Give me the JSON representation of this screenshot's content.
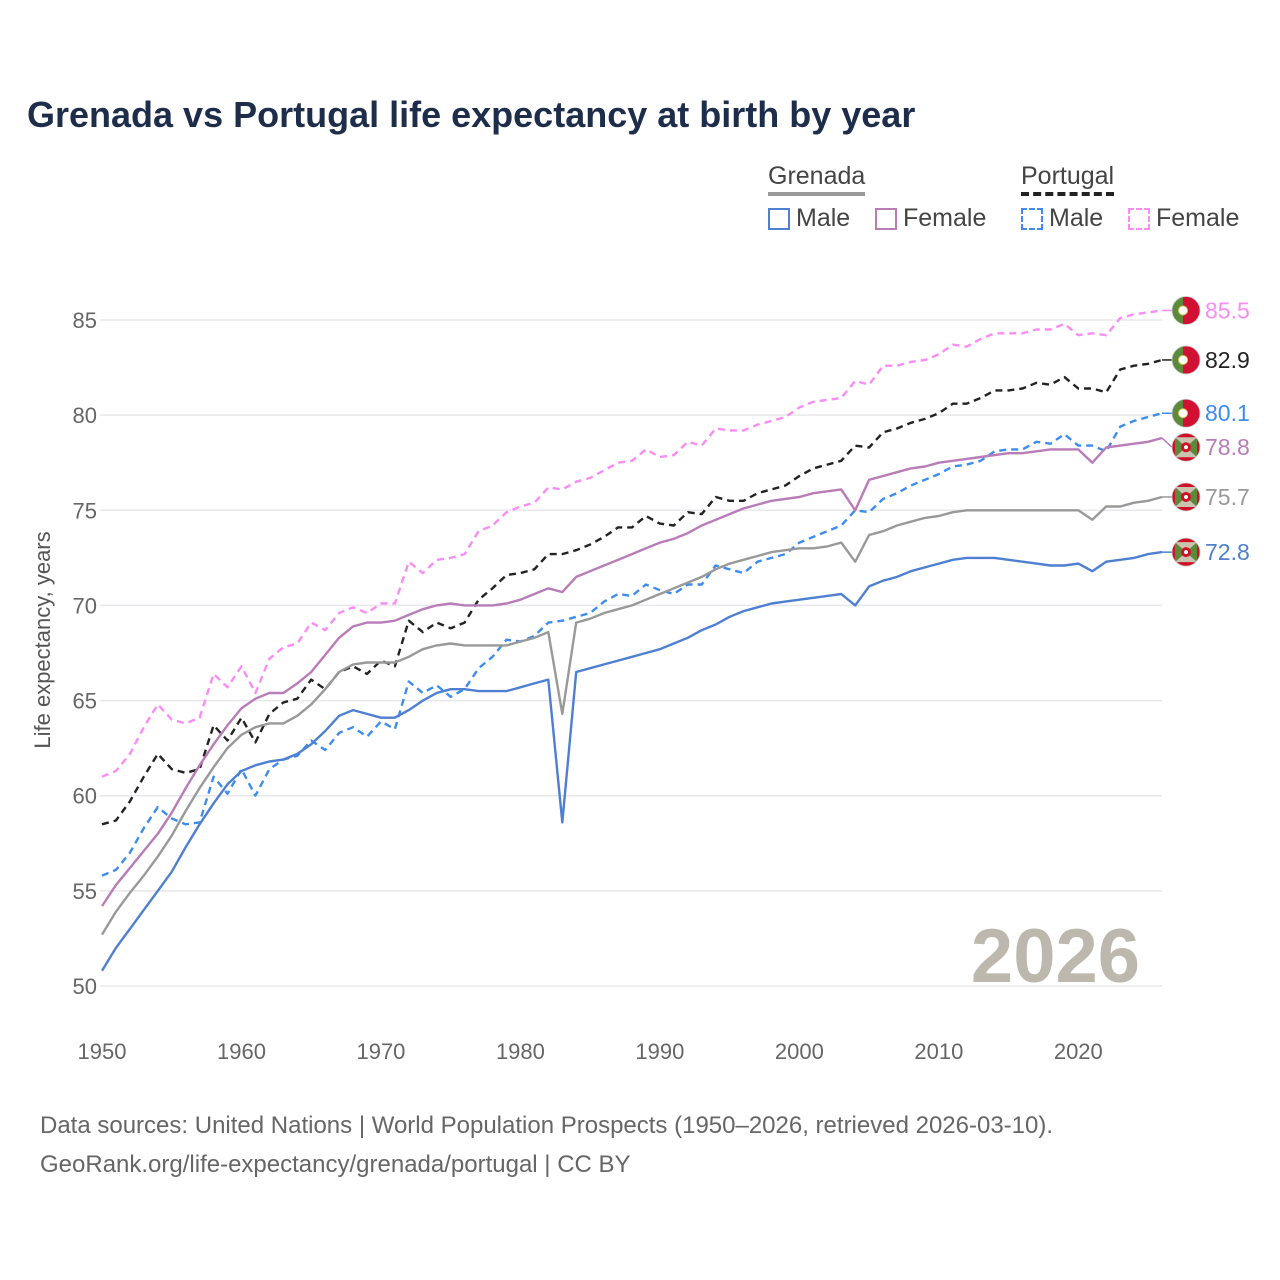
{
  "title": "Grenada vs Portugal life expectancy at birth by year",
  "legend": {
    "groups": [
      {
        "label": "Grenada",
        "color": "#999999",
        "style": "solid"
      },
      {
        "label": "Portugal",
        "color": "#222222",
        "style": "dashed"
      }
    ],
    "items": [
      {
        "label": "Male",
        "color": "#4e7fd0",
        "style": "solid"
      },
      {
        "label": "Female",
        "color": "#b87cb8",
        "style": "solid"
      },
      {
        "label": "Male",
        "color": "#3d8cf0",
        "style": "dashed"
      },
      {
        "label": "Female",
        "color": "#f98cf5",
        "style": "dashed"
      }
    ]
  },
  "footer": {
    "line1": "Data sources: United Nations | World Population Prospects (1950–2026, retrieved 2026-03-10).",
    "line2": "GeoRank.org/life-expectancy/grenada/portugal | CC BY"
  },
  "chart_data": {
    "type": "line",
    "title": "Grenada vs Portugal life expectancy at birth by year",
    "xlabel": "",
    "ylabel": "Life expectancy, years",
    "xlim": [
      1950,
      2026
    ],
    "ylim": [
      50,
      85
    ],
    "x_ticks": [
      "1950",
      "1960",
      "1970",
      "1980",
      "1990",
      "2000",
      "2010",
      "2020"
    ],
    "y_ticks": [
      "50",
      "55",
      "60",
      "65",
      "70",
      "75",
      "80",
      "85"
    ],
    "grid": true,
    "legend_position": "top-right",
    "watermark_year": "2026",
    "x_start": 1950,
    "series": [
      {
        "name": "Portugal Female",
        "country": "portugal",
        "color": "#f98cf5",
        "dashed": true,
        "end_label": "85.5",
        "values": [
          61.0,
          61.3,
          62.2,
          63.6,
          64.8,
          64.0,
          63.8,
          64.1,
          66.4,
          65.7,
          66.8,
          65.4,
          67.2,
          67.8,
          68.0,
          69.1,
          68.7,
          69.6,
          69.9,
          69.6,
          70.1,
          70.1,
          72.3,
          71.7,
          72.4,
          72.5,
          72.7,
          73.9,
          74.2,
          74.9,
          75.2,
          75.4,
          76.2,
          76.1,
          76.5,
          76.7,
          77.1,
          77.5,
          77.6,
          78.2,
          77.8,
          77.9,
          78.6,
          78.4,
          79.3,
          79.2,
          79.2,
          79.5,
          79.7,
          79.9,
          80.4,
          80.7,
          80.8,
          80.9,
          81.8,
          81.6,
          82.6,
          82.6,
          82.8,
          82.9,
          83.2,
          83.7,
          83.6,
          84.0,
          84.3,
          84.3,
          84.3,
          84.5,
          84.5,
          84.8,
          84.2,
          84.3,
          84.2,
          85.1,
          85.3,
          85.4,
          85.5
        ]
      },
      {
        "name": "Portugal",
        "country": "portugal",
        "color": "#222222",
        "dashed": true,
        "end_label": "82.9",
        "values": [
          58.5,
          58.7,
          59.7,
          61.0,
          62.2,
          61.4,
          61.2,
          61.4,
          63.7,
          62.9,
          64.1,
          62.8,
          64.3,
          64.9,
          65.1,
          66.1,
          65.6,
          66.5,
          66.8,
          66.4,
          67.1,
          66.8,
          69.2,
          68.6,
          69.1,
          68.8,
          69.1,
          70.3,
          70.9,
          71.6,
          71.7,
          71.9,
          72.7,
          72.7,
          72.9,
          73.2,
          73.6,
          74.1,
          74.1,
          74.7,
          74.3,
          74.2,
          74.9,
          74.8,
          75.7,
          75.5,
          75.5,
          75.9,
          76.1,
          76.3,
          76.8,
          77.2,
          77.4,
          77.6,
          78.4,
          78.3,
          79.1,
          79.3,
          79.6,
          79.8,
          80.1,
          80.6,
          80.6,
          80.9,
          81.3,
          81.3,
          81.4,
          81.7,
          81.6,
          82.0,
          81.4,
          81.4,
          81.2,
          82.4,
          82.6,
          82.7,
          82.9
        ]
      },
      {
        "name": "Portugal Male",
        "country": "portugal",
        "color": "#3d8cf0",
        "dashed": true,
        "end_label": "80.1",
        "values": [
          55.8,
          56.1,
          57.0,
          58.3,
          59.4,
          58.8,
          58.5,
          58.6,
          61.0,
          60.1,
          61.4,
          60.0,
          61.4,
          61.9,
          62.1,
          62.9,
          62.4,
          63.3,
          63.6,
          63.1,
          63.9,
          63.5,
          66.0,
          65.4,
          65.8,
          65.2,
          65.6,
          66.7,
          67.3,
          68.2,
          68.1,
          68.4,
          69.1,
          69.2,
          69.4,
          69.6,
          70.2,
          70.6,
          70.5,
          71.1,
          70.8,
          70.6,
          71.1,
          71.1,
          72.1,
          71.9,
          71.7,
          72.3,
          72.5,
          72.7,
          73.3,
          73.6,
          73.9,
          74.2,
          75.0,
          74.9,
          75.6,
          75.9,
          76.3,
          76.6,
          76.9,
          77.3,
          77.4,
          77.6,
          78.1,
          78.2,
          78.2,
          78.6,
          78.5,
          79.0,
          78.4,
          78.4,
          78.1,
          79.4,
          79.7,
          79.9,
          80.1
        ]
      },
      {
        "name": "Grenada Female",
        "country": "grenada",
        "color": "#b87cb8",
        "dashed": false,
        "end_label": "78.8",
        "values": [
          54.2,
          55.3,
          56.2,
          57.1,
          58.0,
          59.1,
          60.4,
          61.6,
          62.7,
          63.7,
          64.6,
          65.1,
          65.4,
          65.4,
          65.9,
          66.5,
          67.4,
          68.3,
          68.9,
          69.1,
          69.1,
          69.2,
          69.5,
          69.8,
          70.0,
          70.1,
          70.0,
          70.0,
          70.0,
          70.1,
          70.3,
          70.6,
          70.9,
          70.7,
          71.5,
          71.8,
          72.1,
          72.4,
          72.7,
          73.0,
          73.3,
          73.5,
          73.8,
          74.2,
          74.5,
          74.8,
          75.1,
          75.3,
          75.5,
          75.6,
          75.7,
          75.9,
          76.0,
          76.1,
          75.0,
          76.6,
          76.8,
          77.0,
          77.2,
          77.3,
          77.5,
          77.6,
          77.7,
          77.8,
          77.9,
          78.0,
          78.0,
          78.1,
          78.2,
          78.2,
          78.2,
          77.5,
          78.3,
          78.4,
          78.5,
          78.6,
          78.8
        ]
      },
      {
        "name": "Grenada",
        "country": "grenada",
        "color": "#999999",
        "dashed": false,
        "end_label": "75.7",
        "values": [
          52.7,
          53.9,
          54.9,
          55.8,
          56.8,
          57.9,
          59.2,
          60.4,
          61.5,
          62.5,
          63.2,
          63.6,
          63.8,
          63.8,
          64.2,
          64.8,
          65.6,
          66.5,
          66.9,
          67.0,
          67.0,
          67.0,
          67.3,
          67.7,
          67.9,
          68.0,
          67.9,
          67.9,
          67.9,
          67.9,
          68.1,
          68.3,
          68.6,
          64.3,
          69.1,
          69.3,
          69.6,
          69.8,
          70.0,
          70.3,
          70.6,
          70.9,
          71.2,
          71.5,
          71.9,
          72.2,
          72.4,
          72.6,
          72.8,
          72.9,
          73.0,
          73.0,
          73.1,
          73.3,
          72.3,
          73.7,
          73.9,
          74.2,
          74.4,
          74.6,
          74.7,
          74.9,
          75.0,
          75.0,
          75.0,
          75.0,
          75.0,
          75.0,
          75.0,
          75.0,
          75.0,
          74.5,
          75.2,
          75.2,
          75.4,
          75.5,
          75.7
        ]
      },
      {
        "name": "Grenada Male",
        "country": "grenada",
        "color": "#4e7fd0",
        "dashed": false,
        "end_label": "72.8",
        "values": [
          50.8,
          52.0,
          53.0,
          54.0,
          55.0,
          56.0,
          57.3,
          58.5,
          59.6,
          60.6,
          61.3,
          61.6,
          61.8,
          61.9,
          62.2,
          62.7,
          63.4,
          64.2,
          64.5,
          64.3,
          64.1,
          64.1,
          64.5,
          65.0,
          65.4,
          65.6,
          65.6,
          65.5,
          65.5,
          65.5,
          65.7,
          65.9,
          66.1,
          58.6,
          66.5,
          66.7,
          66.9,
          67.1,
          67.3,
          67.5,
          67.7,
          68.0,
          68.3,
          68.7,
          69.0,
          69.4,
          69.7,
          69.9,
          70.1,
          70.2,
          70.3,
          70.4,
          70.5,
          70.6,
          70.0,
          71.0,
          71.3,
          71.5,
          71.8,
          72.0,
          72.2,
          72.4,
          72.5,
          72.5,
          72.5,
          72.4,
          72.3,
          72.2,
          72.1,
          72.1,
          72.2,
          71.8,
          72.3,
          72.4,
          72.5,
          72.7,
          72.8
        ]
      }
    ]
  }
}
